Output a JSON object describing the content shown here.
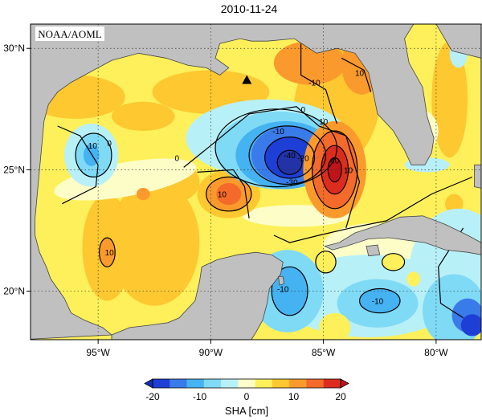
{
  "title": "2010-11-24",
  "credit": "NOAA/AOML",
  "colors": {
    "land": "#c0c0c0",
    "coast": "#444444",
    "scale": [
      "#1d3fd6",
      "#3a7bea",
      "#45b2f2",
      "#7fdaf5",
      "#b8f0f8",
      "#fdfdc8",
      "#fdf05a",
      "#fdc830",
      "#fb9a2c",
      "#f36a2a",
      "#dc2c1e"
    ]
  },
  "map": {
    "lon_range": [
      -98,
      -78
    ],
    "lat_range": [
      18,
      31
    ],
    "x_ticks": [
      {
        "lon": -95,
        "label": "95°W"
      },
      {
        "lon": -90,
        "label": "90°W"
      },
      {
        "lon": -85,
        "label": "85°W"
      },
      {
        "lon": -80,
        "label": "80°W"
      }
    ],
    "y_ticks": [
      {
        "lat": 30,
        "label": "30°N"
      },
      {
        "lat": 25,
        "label": "25°N"
      },
      {
        "lat": 20,
        "label": "20°N"
      }
    ],
    "marker": {
      "name": "triangle-marker",
      "lon": -88.4,
      "lat": 28.7
    },
    "contour_labels": [
      {
        "text": "-40",
        "lon": -86.5,
        "lat": 25.6
      },
      {
        "text": "-30",
        "lon": -86.4,
        "lat": 24.5
      },
      {
        "text": "-20",
        "lon": -85.9,
        "lat": 25.5
      },
      {
        "text": "-10",
        "lon": -87.0,
        "lat": 26.6
      },
      {
        "text": "0",
        "lon": -85.9,
        "lat": 27.5
      },
      {
        "text": "0",
        "lon": -91.5,
        "lat": 25.5
      },
      {
        "text": "-10",
        "lon": -95.3,
        "lat": 26.0
      },
      {
        "text": "0",
        "lon": -94.5,
        "lat": 26.1
      },
      {
        "text": "10",
        "lon": -89.5,
        "lat": 24.0
      },
      {
        "text": "40",
        "lon": -84.5,
        "lat": 25.4
      },
      {
        "text": "10",
        "lon": -83.9,
        "lat": 25.0
      },
      {
        "text": "10",
        "lon": -85.0,
        "lat": 27.0
      },
      {
        "text": "-10",
        "lon": -85.4,
        "lat": 28.6
      },
      {
        "text": "10",
        "lon": -83.4,
        "lat": 29.0
      },
      {
        "text": "-10",
        "lon": -86.8,
        "lat": 20.1
      },
      {
        "text": "-10",
        "lon": -82.6,
        "lat": 19.6
      },
      {
        "text": "10",
        "lon": -94.5,
        "lat": 21.6
      }
    ]
  },
  "chart_data": {
    "type": "heatmap",
    "title": "2010-11-24",
    "colorbar": {
      "label": "SHA [cm]",
      "range": [
        -20,
        20
      ],
      "ticks": [
        -20,
        -10,
        0,
        10,
        20
      ]
    },
    "features": [
      {
        "kind": "low",
        "lon": -86.5,
        "lat": 25.6,
        "value": -42
      },
      {
        "kind": "high",
        "lon": -84.5,
        "lat": 25.0,
        "value": 42
      },
      {
        "kind": "high",
        "lon": -89.2,
        "lat": 24.0,
        "value": 14
      },
      {
        "kind": "low",
        "lon": -95.3,
        "lat": 25.6,
        "value": -12
      },
      {
        "kind": "high",
        "lon": -85.5,
        "lat": 29.5,
        "value": 15
      },
      {
        "kind": "high",
        "lon": -94.6,
        "lat": 21.6,
        "value": 12
      },
      {
        "kind": "low",
        "lon": -86.5,
        "lat": 20.0,
        "value": -14
      },
      {
        "kind": "low",
        "lon": -82.5,
        "lat": 19.6,
        "value": -14
      },
      {
        "kind": "low",
        "lon": -78.5,
        "lat": 19.0,
        "value": -16
      }
    ]
  }
}
